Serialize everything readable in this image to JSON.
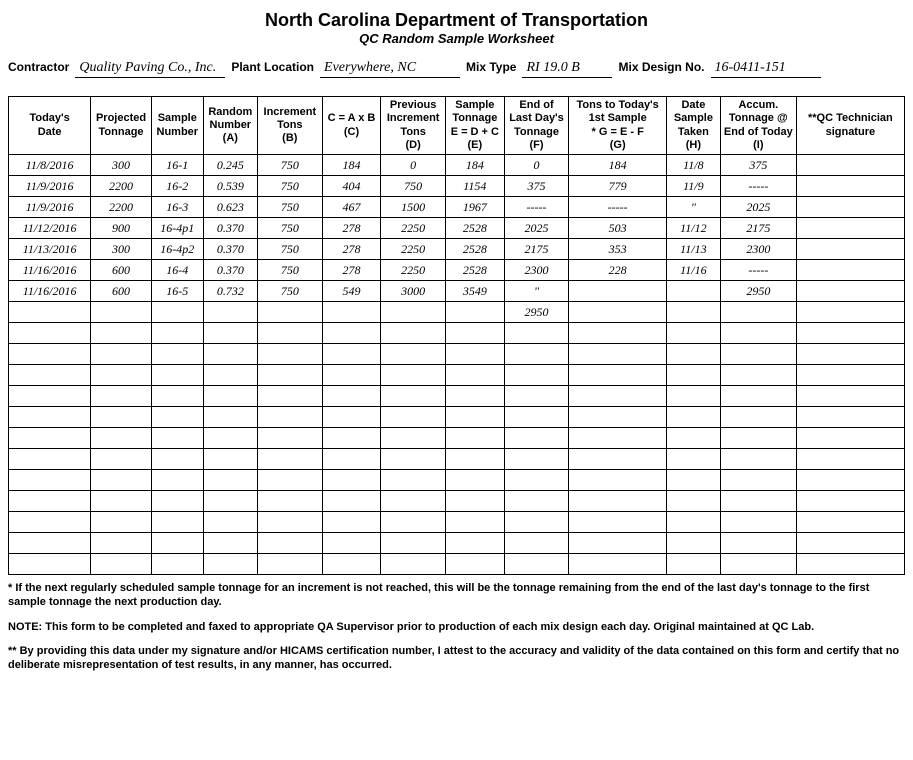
{
  "header": {
    "title": "North Carolina Department of Transportation",
    "subtitle": "QC Random Sample Worksheet"
  },
  "fields": {
    "contractor_label": "Contractor",
    "contractor_value": "Quality Paving Co., Inc.",
    "plant_label": "Plant Location",
    "plant_value": "Everywhere, NC",
    "mixtype_label": "Mix Type",
    "mixtype_value": "RI 19.0 B",
    "mixdesign_label": "Mix Design No.",
    "mixdesign_value": "16-0411-151"
  },
  "table": {
    "columns": [
      "Today's\nDate",
      "Projected\nTonnage",
      "Sample\nNumber",
      "Random\nNumber\n(A)",
      "Increment\nTons\n(B)",
      "C = A x B\n(C)",
      "Previous\nIncrement\nTons\n(D)",
      "Sample\nTonnage\nE = D + C\n(E)",
      "End of\nLast Day's\nTonnage\n(F)",
      "Tons to Today's\n1st Sample\n* G = E - F\n(G)",
      "Date\nSample\nTaken\n(H)",
      "Accum.\nTonnage @\nEnd of Today\n(I)",
      "**QC Technician\nsignature"
    ],
    "rows": [
      [
        "11/8/2016",
        "300",
        "16-1",
        "0.245",
        "750",
        "184",
        "0",
        "184",
        "0",
        "184",
        "11/8",
        "375",
        ""
      ],
      [
        "11/9/2016",
        "2200",
        "16-2",
        "0.539",
        "750",
        "404",
        "750",
        "1154",
        "375",
        "779",
        "11/9",
        "-----",
        ""
      ],
      [
        "11/9/2016",
        "2200",
        "16-3",
        "0.623",
        "750",
        "467",
        "1500",
        "1967",
        "-----",
        "-----",
        "\"",
        "2025",
        ""
      ],
      [
        "11/12/2016",
        "900",
        "16-4p1",
        "0.370",
        "750",
        "278",
        "2250",
        "2528",
        "2025",
        "503",
        "11/12",
        "2175",
        ""
      ],
      [
        "11/13/2016",
        "300",
        "16-4p2",
        "0.370",
        "750",
        "278",
        "2250",
        "2528",
        "2175",
        "353",
        "11/13",
        "2300",
        ""
      ],
      [
        "11/16/2016",
        "600",
        "16-4",
        "0.370",
        "750",
        "278",
        "2250",
        "2528",
        "2300",
        "228",
        "11/16",
        "-----",
        ""
      ],
      [
        "11/16/2016",
        "600",
        "16-5",
        "0.732",
        "750",
        "549",
        "3000",
        "3549",
        "\"",
        "",
        "",
        "2950",
        ""
      ],
      [
        "",
        "",
        "",
        "",
        "",
        "",
        "",
        "",
        "2950",
        "",
        "",
        "",
        ""
      ],
      [
        "",
        "",
        "",
        "",
        "",
        "",
        "",
        "",
        "",
        "",
        "",
        "",
        ""
      ],
      [
        "",
        "",
        "",
        "",
        "",
        "",
        "",
        "",
        "",
        "",
        "",
        "",
        ""
      ],
      [
        "",
        "",
        "",
        "",
        "",
        "",
        "",
        "",
        "",
        "",
        "",
        "",
        ""
      ],
      [
        "",
        "",
        "",
        "",
        "",
        "",
        "",
        "",
        "",
        "",
        "",
        "",
        ""
      ],
      [
        "",
        "",
        "",
        "",
        "",
        "",
        "",
        "",
        "",
        "",
        "",
        "",
        ""
      ],
      [
        "",
        "",
        "",
        "",
        "",
        "",
        "",
        "",
        "",
        "",
        "",
        "",
        ""
      ],
      [
        "",
        "",
        "",
        "",
        "",
        "",
        "",
        "",
        "",
        "",
        "",
        "",
        ""
      ],
      [
        "",
        "",
        "",
        "",
        "",
        "",
        "",
        "",
        "",
        "",
        "",
        "",
        ""
      ],
      [
        "",
        "",
        "",
        "",
        "",
        "",
        "",
        "",
        "",
        "",
        "",
        "",
        ""
      ],
      [
        "",
        "",
        "",
        "",
        "",
        "",
        "",
        "",
        "",
        "",
        "",
        "",
        ""
      ],
      [
        "",
        "",
        "",
        "",
        "",
        "",
        "",
        "",
        "",
        "",
        "",
        "",
        ""
      ],
      [
        "",
        "",
        "",
        "",
        "",
        "",
        "",
        "",
        "",
        "",
        "",
        "",
        ""
      ]
    ]
  },
  "footnotes": {
    "star": "*  If the next regularly scheduled sample tonnage for an increment is not reached, this will be the tonnage remaining from the end of the last day's tonnage to the first sample tonnage the next production day.",
    "note": "NOTE:  This form to be completed and faxed to appropriate QA Supervisor prior to production of each mix design each day.  Original maintained at QC Lab.",
    "starstar": "** By providing this data under my signature and/or HICAMS certification number, I attest to the accuracy and validity of the data contained on this form and certify that no deliberate misrepresentation of test results, in any manner, has occurred."
  }
}
